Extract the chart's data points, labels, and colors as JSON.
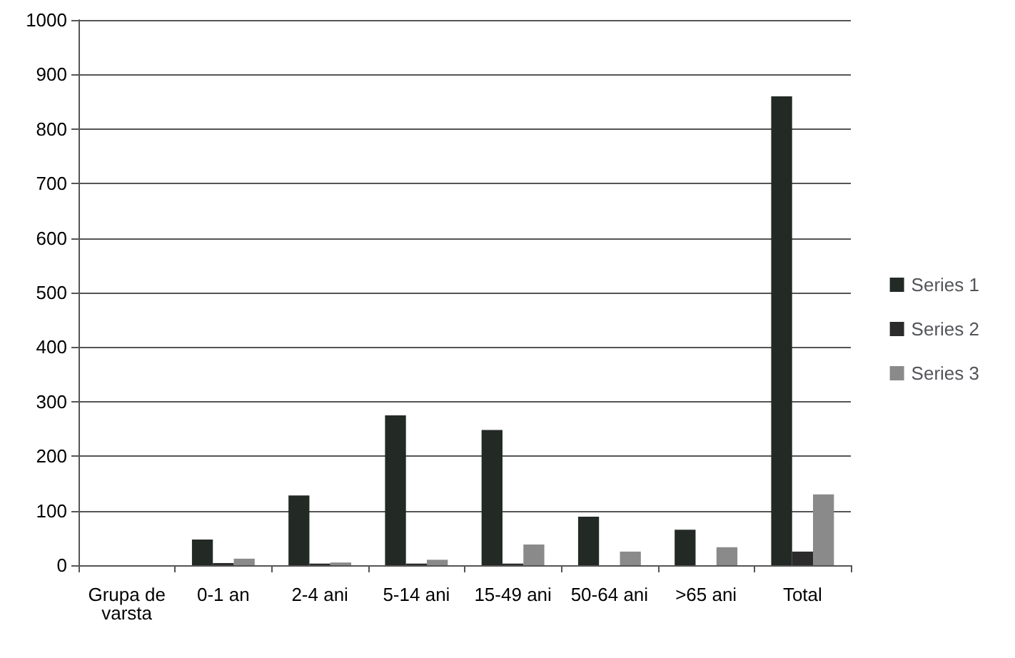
{
  "chart_data": {
    "type": "bar",
    "categories": [
      "Grupa de varsta",
      "0-1 an",
      "2-4 ani",
      "5-14 ani",
      "15-49 ani",
      "50-64 ani",
      ">65 ani",
      "Total"
    ],
    "series": [
      {
        "name": "Series 1",
        "color": "#232a26",
        "values": [
          null,
          47,
          128,
          275,
          248,
          89,
          65,
          860
        ]
      },
      {
        "name": "Series 2",
        "color": "#2b2b2b",
        "values": [
          null,
          4,
          3,
          3,
          3,
          null,
          null,
          25
        ]
      },
      {
        "name": "Series 3",
        "color": "#8a8a8a",
        "values": [
          null,
          12,
          5,
          10,
          38,
          25,
          33,
          130
        ]
      }
    ],
    "ylim": [
      0,
      1000
    ],
    "yticks": [
      0,
      100,
      200,
      300,
      400,
      500,
      600,
      700,
      800,
      900,
      1000
    ],
    "grid": "y",
    "legend": "right"
  }
}
